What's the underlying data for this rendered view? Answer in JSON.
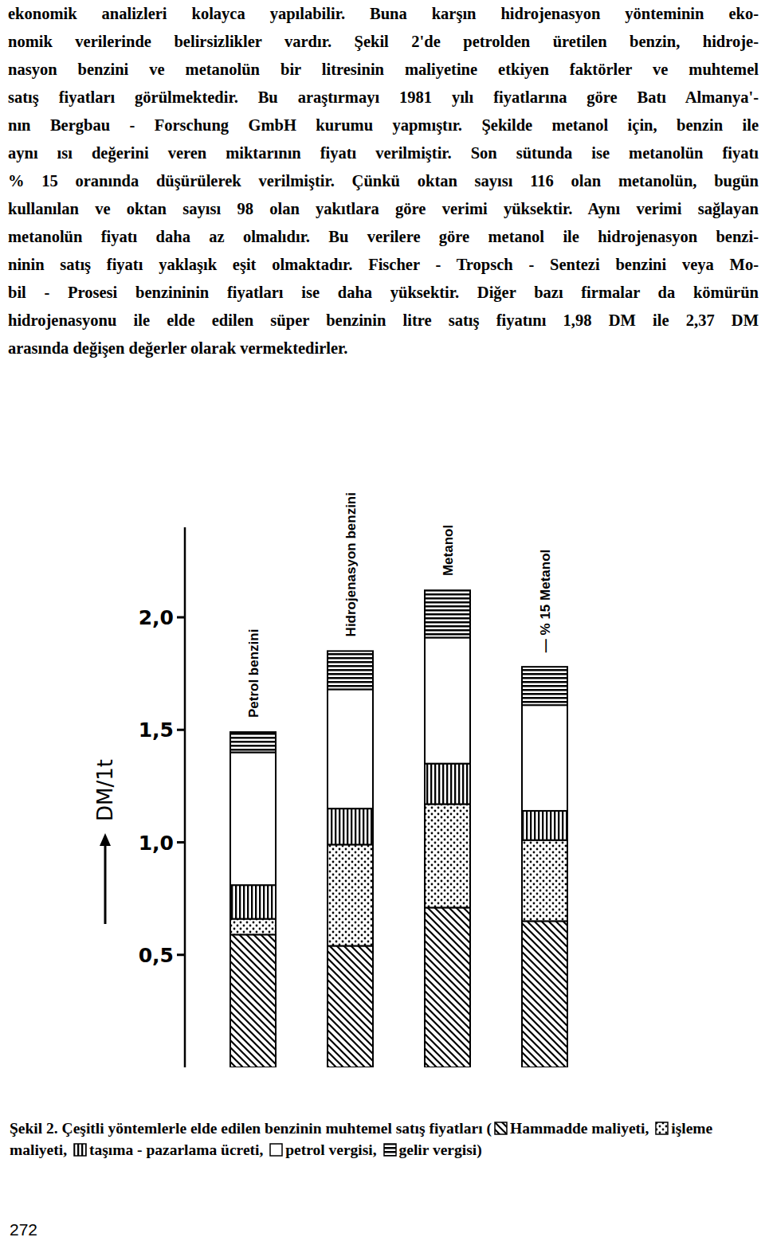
{
  "document": {
    "paragraph_lines": [
      "ekonomik analizleri kolayca yapılabilir. Buna karşın hidrojenasyon yönteminin eko-",
      "nomik verilerinde belirsizlikler vardır. Şekil 2'de petrolden üretilen benzin, hidroje-",
      "nasyon benzini ve metanolün bir litresinin maliyetine etkiyen faktörler ve muhtemel",
      "satış fiyatları görülmektedir. Bu araştırmayı 1981 yılı fiyatlarına göre Batı Almanya'-",
      "nın Bergbau - Forschung GmbH kurumu yapmıştır. Şekilde metanol için, benzin ile",
      "aynı ısı değerini veren miktarının fiyatı verilmiştir. Son sütunda ise metanolün fiyatı",
      "% 15 oranında düşürülerek verilmiştir. Çünkü oktan sayısı 116 olan metanolün, bugün",
      "kullanılan ve oktan sayısı 98 olan yakıtlara göre verimi yüksektir. Aynı verimi sağlayan",
      "metanolün fiyatı daha az olmalıdır. Bu verilere göre metanol ile hidrojenasyon benzi-",
      "ninin satış fiyatı yaklaşık eşit olmaktadır. Fischer - Tropsch - Sentezi benzini veya Mo-",
      "bil - Prosesi benzininin fiyatları ise daha yüksektir. Diğer bazı firmalar da kömürün",
      "hidrojenasyonu ile elde edilen süper benzinin litre satış fiyatını 1,98 DM ile 2,37 DM",
      "arasında değişen değerler olarak vermektedirler."
    ],
    "caption_start": "Şekil 2. Çeşitli yöntemlerle elde edilen benzinin muhtemel satış fiyatları (",
    "legend_separator": ", ",
    "caption_end": ")",
    "page_number": "272"
  },
  "chart_data": {
    "type": "bar",
    "stacked": true,
    "grid": false,
    "y_label": "DM/1t",
    "categories": [
      "Petrol benzini",
      "Hidrojenasyon benzini",
      "Metanol",
      "— % 15 Metanol"
    ],
    "series": [
      {
        "name": "Hammadde maliyeti",
        "color": "#000000",
        "values": [
          0.59,
          0.54,
          0.71,
          0.65
        ]
      },
      {
        "name": "işleme maliyeti",
        "color": "#000000",
        "values": [
          0.07,
          0.45,
          0.46,
          0.36
        ]
      },
      {
        "name": "taşıma - pazarlama ücreti",
        "color": "#000000",
        "values": [
          0.15,
          0.16,
          0.18,
          0.13
        ]
      },
      {
        "name": "petrol vergisi",
        "color": "#000000",
        "values": [
          0.59,
          0.53,
          0.56,
          0.47
        ]
      },
      {
        "name": "gelir vergisi",
        "color": "#000000",
        "values": [
          0.09,
          0.17,
          0.21,
          0.17
        ]
      }
    ],
    "ylim": [
      0,
      2.4
    ],
    "yticks": [
      {
        "value": 0.5,
        "label": "0,5"
      },
      {
        "value": 1.0,
        "label": "1,0"
      },
      {
        "value": 1.5,
        "label": "1,5"
      },
      {
        "value": 2.0,
        "label": "2,0"
      }
    ]
  }
}
